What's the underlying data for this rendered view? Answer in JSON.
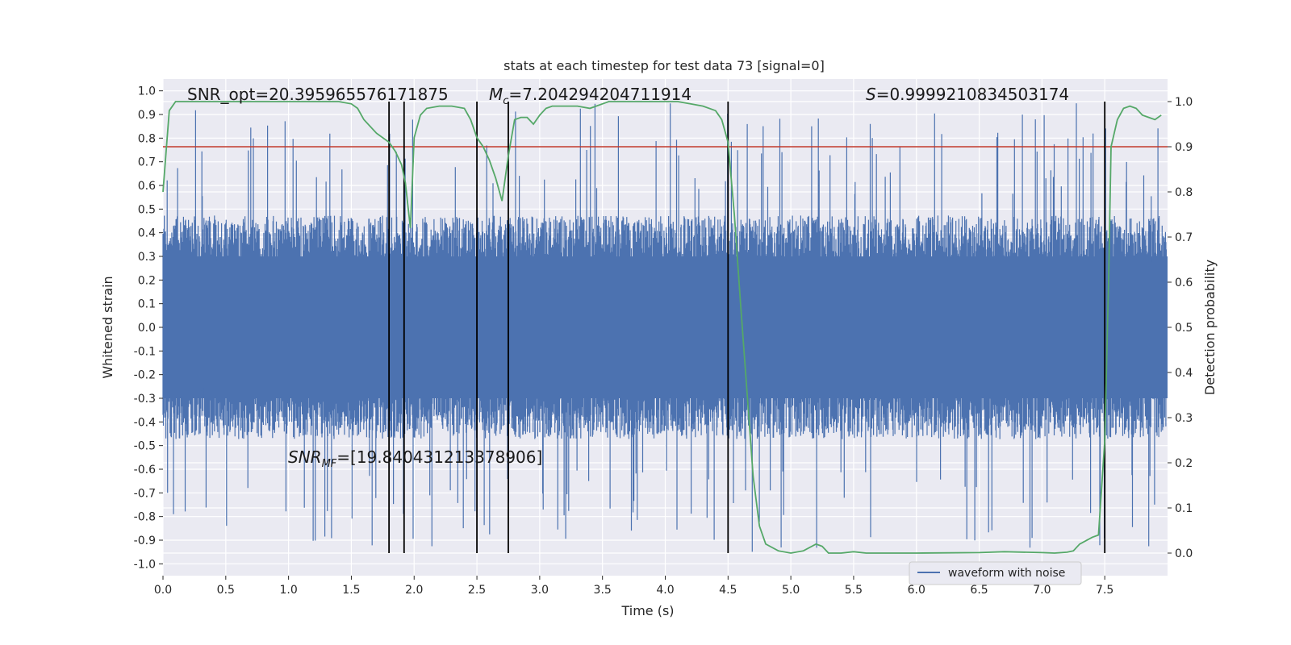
{
  "chart_data": {
    "type": "line",
    "title": "stats at each timestep for test data 73 [signal=0]",
    "xlabel": "Time (s)",
    "ylabel_left": "Whitened strain",
    "ylabel_right": "Detection probability",
    "xlim": [
      0.0,
      8.0
    ],
    "ylim_left": [
      -1.05,
      1.05
    ],
    "ylim_right": [
      -0.05,
      1.05
    ],
    "x_ticks": [
      "0.0",
      "0.5",
      "1.0",
      "1.5",
      "2.0",
      "2.5",
      "3.0",
      "3.5",
      "4.0",
      "4.5",
      "5.0",
      "5.5",
      "6.0",
      "6.5",
      "7.0",
      "7.5"
    ],
    "x_tick_values": [
      0.0,
      0.5,
      1.0,
      1.5,
      2.0,
      2.5,
      3.0,
      3.5,
      4.0,
      4.5,
      5.0,
      5.5,
      6.0,
      6.5,
      7.0,
      7.5
    ],
    "y_left_ticks": [
      "1.0",
      "0.9",
      "0.8",
      "0.7",
      "0.6",
      "0.5",
      "0.4",
      "0.3",
      "0.2",
      "0.1",
      "0.0",
      "-0.1",
      "-0.2",
      "-0.3",
      "-0.4",
      "-0.5",
      "-0.6",
      "-0.7",
      "-0.8",
      "-0.9",
      "-1.0"
    ],
    "y_left_tick_values": [
      1.0,
      0.9,
      0.8,
      0.7,
      0.6,
      0.5,
      0.4,
      0.3,
      0.2,
      0.1,
      0.0,
      -0.1,
      -0.2,
      -0.3,
      -0.4,
      -0.5,
      -0.6,
      -0.7,
      -0.8,
      -0.9,
      -1.0
    ],
    "y_right_ticks": [
      "1.0",
      "0.9",
      "0.8",
      "0.7",
      "0.6",
      "0.5",
      "0.4",
      "0.3",
      "0.2",
      "0.1",
      "0.0"
    ],
    "y_right_tick_values": [
      1.0,
      0.9,
      0.8,
      0.7,
      0.6,
      0.5,
      0.4,
      0.3,
      0.2,
      0.1,
      0.0
    ],
    "threshold": 0.9,
    "threshold_color": "#c0392b",
    "vlines": [
      1.8,
      1.92,
      2.5,
      2.75,
      4.5,
      7.5
    ],
    "vline_range": [
      0.0,
      1.0
    ],
    "annotations": {
      "snr_opt": "SNR_opt=20.395965576171875",
      "mc_symbol": "M",
      "mc_sub": "c",
      "mc_value": "=7.204294204711914",
      "s_symbol": "S",
      "s_value": "=0.9999210834503174",
      "snrmf_symbol": "SNR",
      "snrmf_sub": "MF",
      "snrmf_value": "=[19.840431213378906]"
    },
    "series": [
      {
        "name": "waveform with noise",
        "axis": "left",
        "color": "#4c72b0",
        "kind": "noise",
        "typical_envelope": 0.45,
        "peak_range": [
          -0.97,
          1.0
        ]
      },
      {
        "name": "detection probability",
        "axis": "right",
        "color": "#55a868",
        "x": [
          0.0,
          0.05,
          0.1,
          0.2,
          0.3,
          0.5,
          0.8,
          1.0,
          1.2,
          1.3,
          1.4,
          1.5,
          1.55,
          1.6,
          1.7,
          1.8,
          1.85,
          1.9,
          1.93,
          1.97,
          2.0,
          2.05,
          2.1,
          2.2,
          2.3,
          2.4,
          2.45,
          2.5,
          2.55,
          2.6,
          2.65,
          2.7,
          2.75,
          2.8,
          2.85,
          2.9,
          2.95,
          3.0,
          3.05,
          3.1,
          3.2,
          3.3,
          3.4,
          3.45,
          3.5,
          3.55,
          3.6,
          3.8,
          4.0,
          4.1,
          4.2,
          4.3,
          4.4,
          4.45,
          4.5,
          4.55,
          4.6,
          4.65,
          4.7,
          4.75,
          4.8,
          4.9,
          5.0,
          5.1,
          5.2,
          5.25,
          5.3,
          5.4,
          5.5,
          5.6,
          6.0,
          6.5,
          6.7,
          7.0,
          7.1,
          7.2,
          7.25,
          7.3,
          7.4,
          7.45,
          7.5,
          7.53,
          7.55,
          7.6,
          7.65,
          7.7,
          7.75,
          7.8,
          7.85,
          7.9,
          7.95
        ],
        "y": [
          0.8,
          0.98,
          1.0,
          1.0,
          1.0,
          1.0,
          1.0,
          1.0,
          1.0,
          1.0,
          1.0,
          0.995,
          0.985,
          0.96,
          0.93,
          0.91,
          0.89,
          0.86,
          0.82,
          0.72,
          0.92,
          0.97,
          0.985,
          0.99,
          0.99,
          0.985,
          0.96,
          0.92,
          0.9,
          0.87,
          0.83,
          0.78,
          0.88,
          0.96,
          0.965,
          0.965,
          0.95,
          0.97,
          0.985,
          0.99,
          0.99,
          0.99,
          0.985,
          0.99,
          0.995,
          1.0,
          1.0,
          1.0,
          1.0,
          1.0,
          0.995,
          0.99,
          0.98,
          0.96,
          0.91,
          0.75,
          0.55,
          0.36,
          0.17,
          0.06,
          0.02,
          0.005,
          0.0,
          0.005,
          0.02,
          0.015,
          0.0,
          0.0,
          0.003,
          0.0,
          0.0,
          0.001,
          0.003,
          0.001,
          0.0,
          0.002,
          0.005,
          0.02,
          0.035,
          0.04,
          0.25,
          0.6,
          0.9,
          0.96,
          0.985,
          0.99,
          0.985,
          0.97,
          0.965,
          0.96,
          0.97
        ]
      }
    ],
    "legend_entry": "waveform with noise",
    "legend_position": "lower-right"
  }
}
